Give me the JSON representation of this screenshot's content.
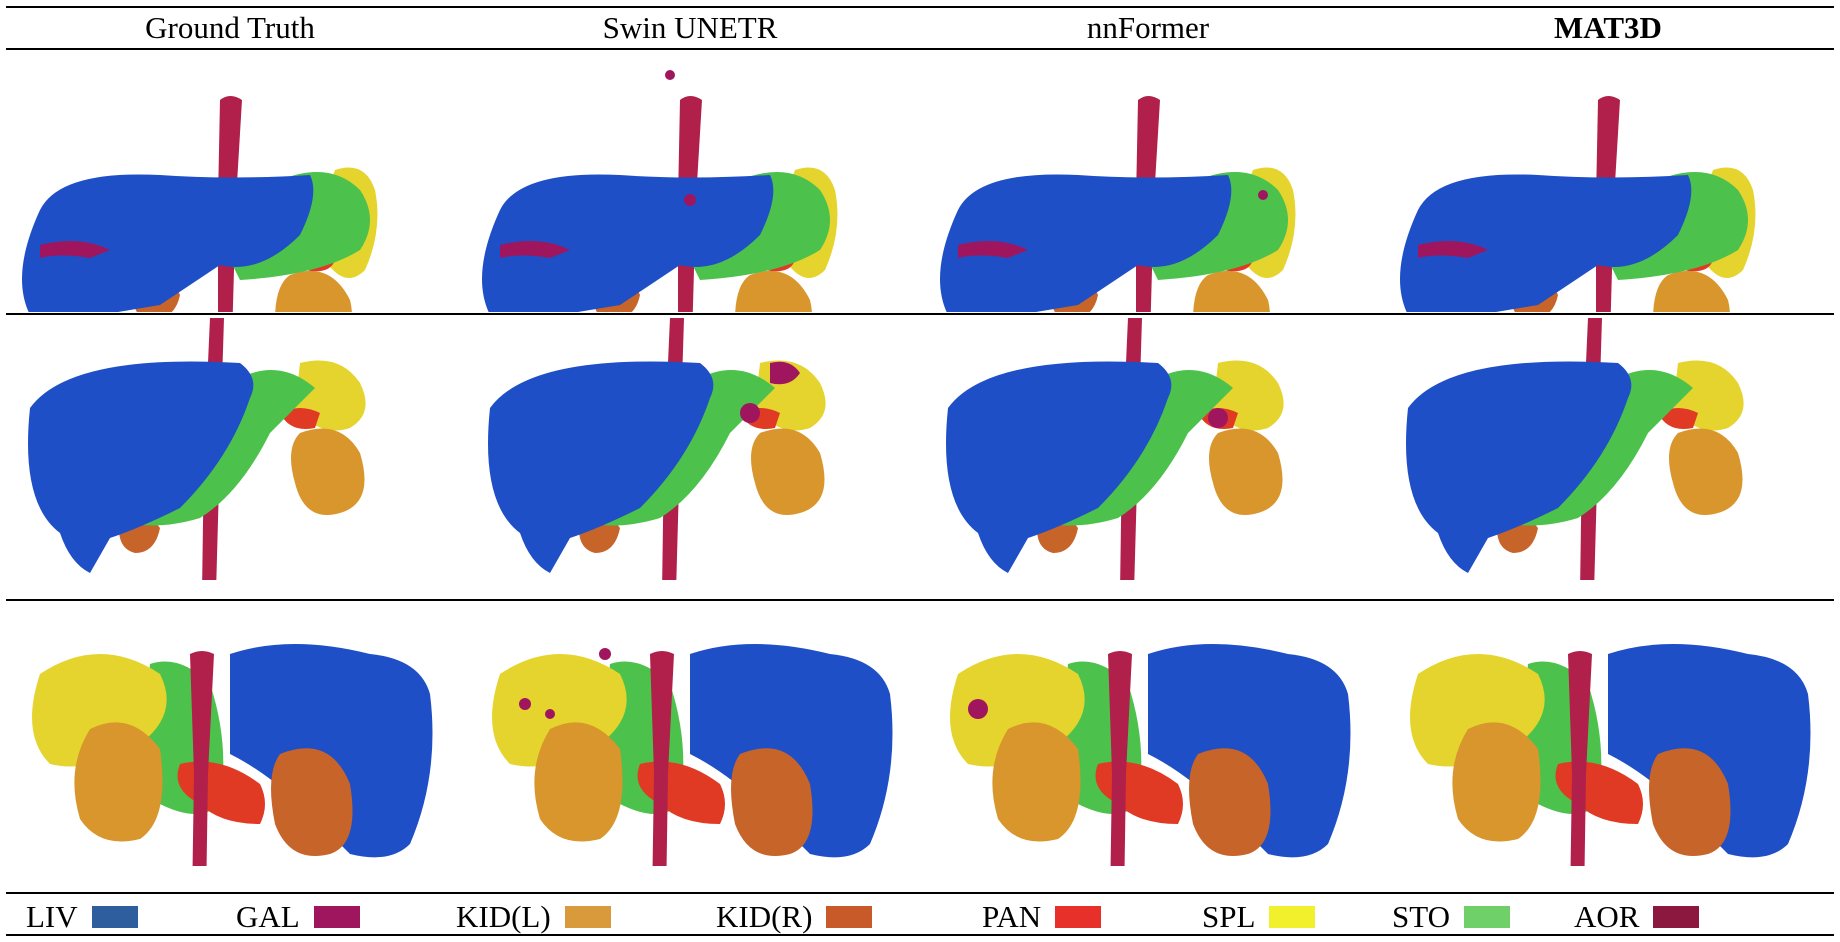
{
  "columns": [
    {
      "label": "Ground Truth",
      "bold": false
    },
    {
      "label": "Swin UNETR",
      "bold": false
    },
    {
      "label": "nnFormer",
      "bold": false
    },
    {
      "label": "MAT3D",
      "bold": true
    }
  ],
  "legend": [
    {
      "label": "LIV",
      "color": "#2f5e9e"
    },
    {
      "label": "GAL",
      "color": "#a0165e"
    },
    {
      "label": "KID(L)",
      "color": "#d99a3c"
    },
    {
      "label": "KID(R)",
      "color": "#c75a28"
    },
    {
      "label": "PAN",
      "color": "#e8302a"
    },
    {
      "label": "SPL",
      "color": "#f2f02c"
    },
    {
      "label": "STO",
      "color": "#6fd06a"
    },
    {
      "label": "AOR",
      "color": "#8c1840"
    }
  ],
  "rendering_colors": {
    "liver": "#1f4fc7",
    "stomach": "#4cc24c",
    "spleen": "#e6d42e",
    "kidney_left": "#d8962c",
    "kidney_right": "#c6642a",
    "pancreas": "#e03a24",
    "aorta": "#b0204a",
    "gallbladder": "#a0165e"
  }
}
